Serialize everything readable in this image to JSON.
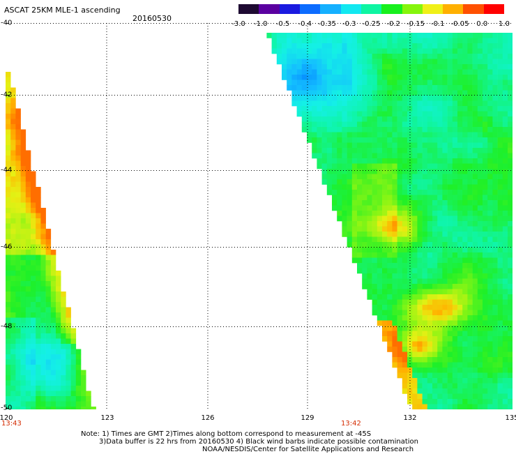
{
  "header": {
    "title": "ASCAT 25KM MLE-1 ascending",
    "date": "20160530"
  },
  "colorbar": {
    "labels": [
      "-3.0",
      "-1.0",
      "-0.5",
      "-0.4",
      "-0.35",
      "-0.3",
      "-0.25",
      "-0.2",
      "-0.15",
      "-0.1",
      "-0.05",
      "0.0",
      "1.0"
    ],
    "colors": [
      "#1e0a32",
      "#5a00a0",
      "#1a1ae0",
      "#0c6cff",
      "#15b0ff",
      "#12e8f0",
      "#0ef5a2",
      "#18f01e",
      "#86f50c",
      "#f0f018",
      "#ffb000",
      "#ff5000",
      "#ff0000"
    ]
  },
  "map": {
    "lon_range": [
      120,
      135
    ],
    "lat_range": [
      -40,
      -50
    ],
    "x_ticks": [
      "120",
      "123",
      "126",
      "129",
      "132",
      "135"
    ],
    "y_ticks": [
      "-40",
      "-42",
      "-44",
      "-46",
      "-48",
      "-50"
    ],
    "times": [
      "13:43",
      "13:42"
    ],
    "swaths": [
      {
        "name": "west-swath",
        "coverage": "120E-122.5E, -41.3 to -50"
      },
      {
        "name": "east-swath",
        "coverage": "127.7E-135E, -40 to -50"
      }
    ]
  },
  "notes": {
    "line1": "Note: 1) Times are GMT 2)Times along bottom correspond to measurement at -45S",
    "line2": "3)Data buffer is 22 hrs from 20160530 4) Black wind barbs indicate possible contamination",
    "line3": "NOAA/NESDIS/Center for Satellite Applications and Research"
  }
}
